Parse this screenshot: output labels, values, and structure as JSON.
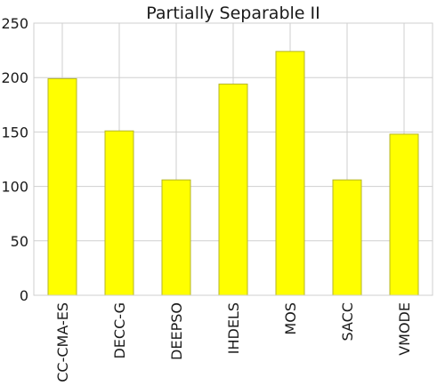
{
  "chart_data": {
    "type": "bar",
    "title": "Partially Separable II",
    "xlabel": "",
    "ylabel": "",
    "categories": [
      "CC-CMA-ES",
      "DECC-G",
      "DEEPSO",
      "IHDELS",
      "MOS",
      "SACC",
      "VMODE"
    ],
    "values": [
      199,
      151,
      106,
      194,
      224,
      106,
      148
    ],
    "ylim": [
      0,
      250
    ],
    "yticks": [
      0,
      50,
      100,
      150,
      200,
      250
    ],
    "grid": true,
    "legend": "none",
    "colors": {
      "bar_fill": "#ffff00",
      "bar_edge": "#b5b52a",
      "grid": "#cfcfcf",
      "frame": "#cfcfcf",
      "text": "#1a1a1a"
    }
  }
}
